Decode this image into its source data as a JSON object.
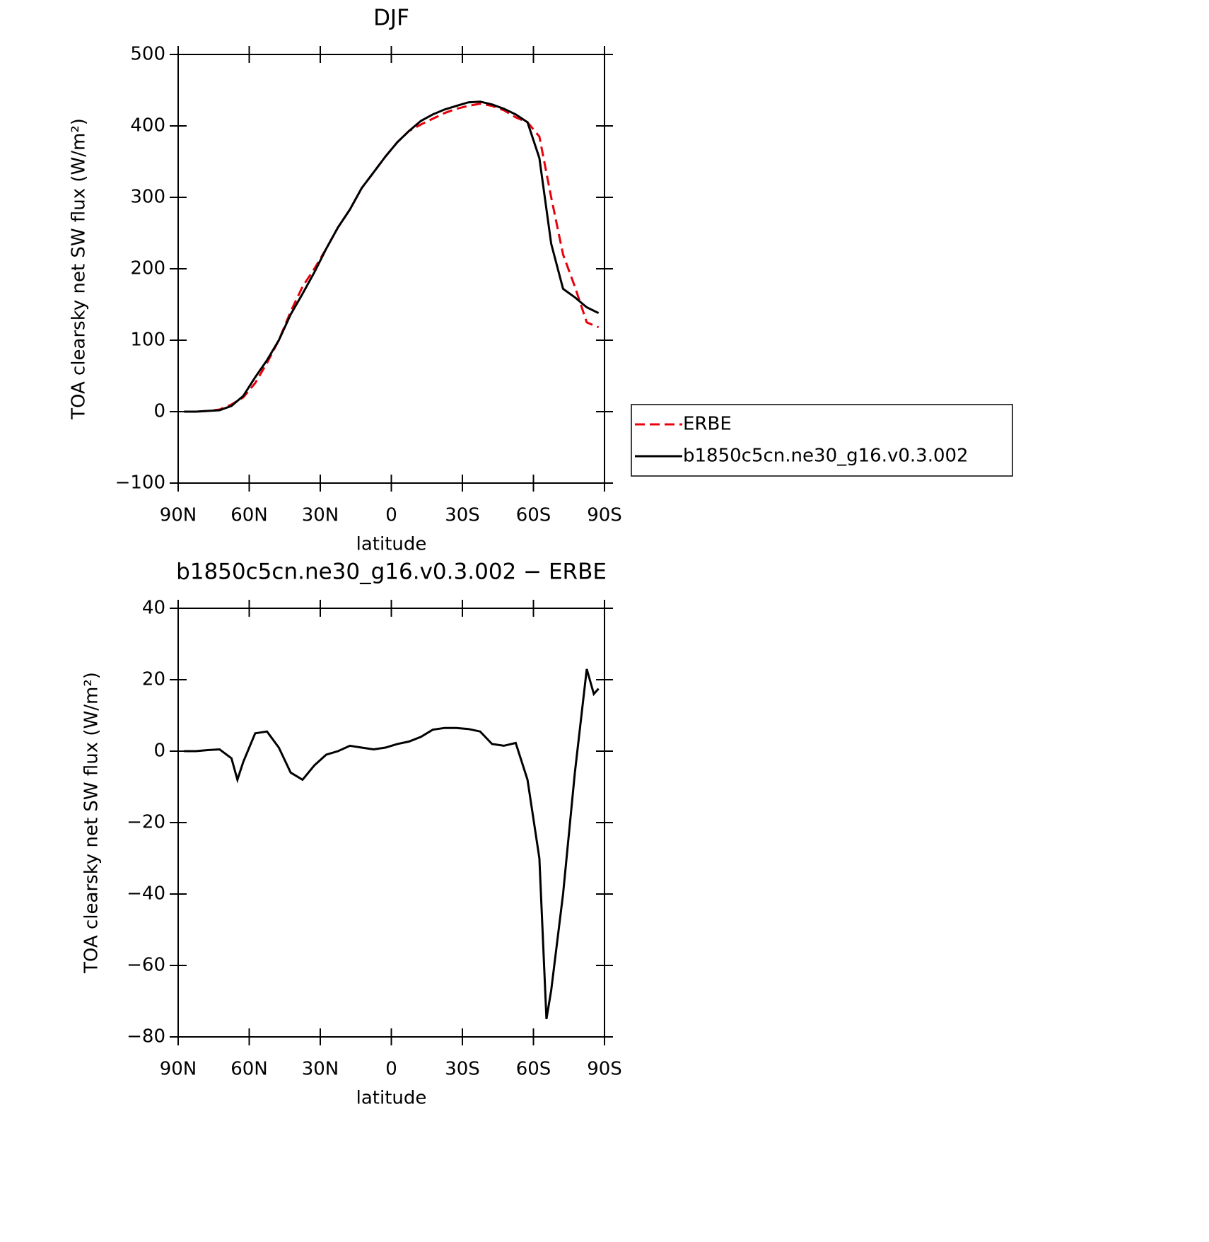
{
  "chart_data": [
    {
      "type": "line",
      "title": "DJF",
      "xlabel": "latitude",
      "ylabel": "TOA clearsky net SW flux (W/m²)",
      "x": [
        87.5,
        82.5,
        77.5,
        72.5,
        67.5,
        62.5,
        57.5,
        52.5,
        47.5,
        42.5,
        37.5,
        32.5,
        27.5,
        22.5,
        17.5,
        12.5,
        7.5,
        2.5,
        -2.5,
        -7.5,
        -12.5,
        -17.5,
        -22.5,
        -27.5,
        -32.5,
        -37.5,
        -42.5,
        -47.5,
        -52.5,
        -57.5,
        -62.5,
        -67.5,
        -72.5,
        -77.5,
        -82.5,
        -87.5
      ],
      "series": [
        {
          "name": "ERBE",
          "color": "#e8000b",
          "dashed": true,
          "values": [
            0,
            0,
            1,
            3,
            10,
            20,
            40,
            68,
            100,
            140,
            175,
            200,
            228,
            258,
            283,
            313,
            335,
            357,
            377,
            393,
            402,
            410,
            418,
            424,
            428,
            431,
            428,
            422,
            412,
            405,
            385,
            300,
            220,
            175,
            125,
            118
          ]
        },
        {
          "name": "b1850c5cn.ne30_g16.v0.3.002",
          "color": "#000000",
          "dashed": false,
          "values": [
            0,
            0,
            1,
            2,
            8,
            22,
            48,
            72,
            100,
            136,
            165,
            195,
            228,
            258,
            283,
            313,
            335,
            357,
            377,
            393,
            407,
            416,
            423,
            428,
            433,
            434,
            430,
            424,
            416,
            405,
            355,
            235,
            172,
            160,
            146,
            138
          ]
        }
      ],
      "xlim": [
        90,
        -90
      ],
      "xticks": [
        {
          "value": 90,
          "label": "90N"
        },
        {
          "value": 60,
          "label": "60N"
        },
        {
          "value": 30,
          "label": "30N"
        },
        0,
        {
          "value": -30,
          "label": "30S"
        },
        {
          "value": -60,
          "label": "60S"
        },
        {
          "value": -90,
          "label": "90S"
        }
      ],
      "ylim": [
        -100,
        500
      ],
      "yticks": [
        {
          "value": -100,
          "label": "−100"
        },
        0,
        100,
        200,
        300,
        400,
        500
      ],
      "legend": "right"
    },
    {
      "type": "line",
      "title": "b1850c5cn.ne30_g16.v0.3.002 − ERBE",
      "xlabel": "latitude",
      "ylabel": "TOA clearsky net SW flux (W/m²)",
      "x": [
        87.5,
        82.5,
        77.5,
        72.5,
        67.5,
        65,
        62.5,
        57.5,
        52.5,
        47.5,
        42.5,
        37.5,
        32.5,
        27.5,
        22.5,
        17.5,
        12.5,
        7.5,
        2.5,
        -2.5,
        -7.5,
        -12.5,
        -17.5,
        -22.5,
        -27.5,
        -32.5,
        -37.5,
        -42.5,
        -47.5,
        -52.5,
        -57.5,
        -62.5,
        -65.5,
        -67.5,
        -72.5,
        -77.5,
        -82.5,
        -85.5,
        -87.5
      ],
      "series": [
        {
          "name": "b1850c5cn.ne30_g16.v0.3.002 − ERBE",
          "color": "#000000",
          "dashed": false,
          "values": [
            0,
            0,
            0.3,
            0.5,
            -2,
            -8,
            -3,
            5,
            5.5,
            1,
            -6,
            -8,
            -4,
            -1,
            0,
            1.5,
            1,
            0.5,
            1,
            2,
            2.7,
            4,
            6,
            6.5,
            6.5,
            6.2,
            5.5,
            2,
            1.5,
            2.3,
            -8,
            -30,
            -75,
            -67,
            -40,
            -6,
            23,
            16,
            17.5
          ]
        }
      ],
      "xlim": [
        90,
        -90
      ],
      "xticks": [
        {
          "value": 90,
          "label": "90N"
        },
        {
          "value": 60,
          "label": "60N"
        },
        {
          "value": 30,
          "label": "30N"
        },
        0,
        {
          "value": -30,
          "label": "30S"
        },
        {
          "value": -60,
          "label": "60S"
        },
        {
          "value": -90,
          "label": "90S"
        }
      ],
      "ylim": [
        -80,
        40
      ],
      "yticks": [
        {
          "value": -80,
          "label": "−80"
        },
        {
          "value": -60,
          "label": "−60"
        },
        {
          "value": -40,
          "label": "−40"
        },
        {
          "value": -20,
          "label": "−20"
        },
        0,
        20,
        40
      ]
    }
  ]
}
